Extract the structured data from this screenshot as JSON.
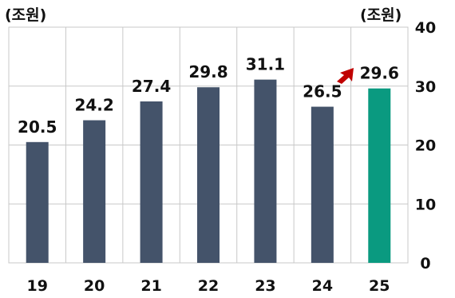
{
  "chart_data": {
    "type": "bar",
    "categories": [
      "19",
      "20",
      "21",
      "22",
      "23",
      "24",
      "25"
    ],
    "values": [
      20.5,
      24.2,
      27.4,
      29.8,
      31.1,
      26.5,
      29.6
    ],
    "data_labels": [
      "20.5",
      "24.2",
      "27.4",
      "29.8",
      "31.1",
      "26.5",
      "29.6"
    ],
    "y_ticks": [
      "0",
      "10",
      "20",
      "30",
      "40"
    ],
    "ylim": [
      0,
      40
    ],
    "unit_left": "(조원)",
    "unit_right": "(조원)",
    "grid": true,
    "y_axis_position": "right",
    "highlight_index": 6,
    "arrow_annotation": true,
    "colors": {
      "bar": "#44536a",
      "highlight_bar": "#0a9a80",
      "arrow": "#c00000",
      "grid": "#c8c8c8",
      "text": "#111111"
    }
  }
}
